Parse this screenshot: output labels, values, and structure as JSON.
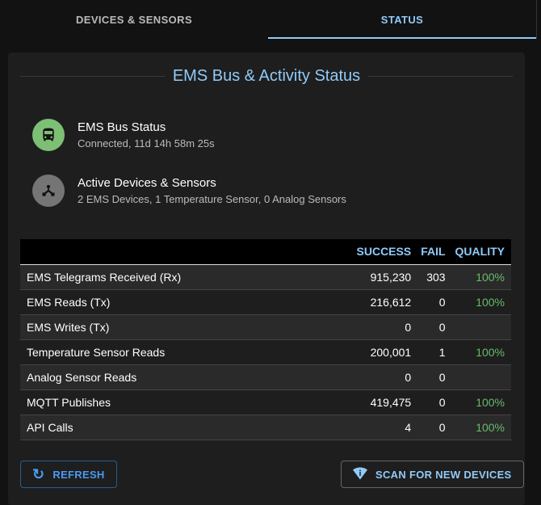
{
  "tabs": [
    {
      "label": "DEVICES & SENSORS",
      "active": false
    },
    {
      "label": "STATUS",
      "active": true
    }
  ],
  "card": {
    "title": "EMS Bus & Activity Status"
  },
  "status_items": [
    {
      "title": "EMS Bus Status",
      "subtitle": "Connected, 11d 14h 58m 25s",
      "icon": "bus-icon",
      "color": "#7dbf74"
    },
    {
      "title": "Active Devices & Sensors",
      "subtitle": "2 EMS Devices, 1 Temperature Sensor, 0 Analog Sensors",
      "icon": "device-hub-icon",
      "color": "#757575"
    }
  ],
  "table": {
    "headers": [
      "",
      "SUCCESS",
      "FAIL",
      "QUALITY"
    ],
    "rows": [
      [
        "EMS Telegrams Received (Rx)",
        "915,230",
        "303",
        "100%"
      ],
      [
        "EMS Reads (Tx)",
        "216,612",
        "0",
        "100%"
      ],
      [
        "EMS Writes (Tx)",
        "0",
        "0",
        ""
      ],
      [
        "Temperature Sensor Reads",
        "200,001",
        "1",
        "100%"
      ],
      [
        "Analog Sensor Reads",
        "0",
        "0",
        ""
      ],
      [
        "MQTT Publishes",
        "419,475",
        "0",
        "100%"
      ],
      [
        "API Calls",
        "4",
        "0",
        "100%"
      ]
    ]
  },
  "buttons": {
    "refresh": "REFRESH",
    "scan": "SCAN FOR NEW DEVICES"
  },
  "colors": {
    "accent": "#90caf9",
    "quality": "#66bb6a"
  }
}
